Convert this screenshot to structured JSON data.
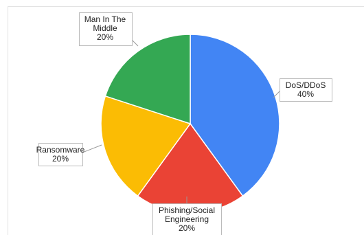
{
  "chart_data": {
    "type": "pie",
    "slices": [
      {
        "label_lines": [
          "DoS/DDoS"
        ],
        "value": 40,
        "percent_label": "40%",
        "color": "#4285f4"
      },
      {
        "label_lines": [
          "Phishing/Social",
          "Engineering"
        ],
        "value": 20,
        "percent_label": "20%",
        "color": "#ea4335"
      },
      {
        "label_lines": [
          "Ransomware"
        ],
        "value": 20,
        "percent_label": "20%",
        "color": "#fbbc04"
      },
      {
        "label_lines": [
          "Man In The",
          "Middle"
        ],
        "value": 20,
        "percent_label": "20%",
        "color": "#34a853"
      }
    ],
    "start_angle_deg": 0,
    "direction": "clockwise",
    "legend": "none",
    "labels": "callouts"
  }
}
